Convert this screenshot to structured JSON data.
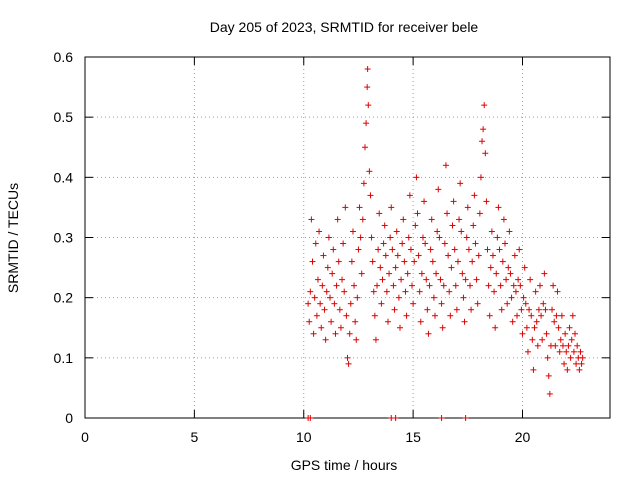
{
  "chart_data": {
    "type": "scatter",
    "title": "Day 205 of 2023, SRMTID for receiver bele",
    "xlabel": "GPS time / hours",
    "ylabel": "SRMTID / TECUs",
    "xlim": [
      0,
      24
    ],
    "ylim": [
      0,
      0.6
    ],
    "x_ticks": [
      0,
      5,
      10,
      15,
      20
    ],
    "x_tick_labels": [
      "0",
      "5",
      "10",
      "15",
      "20"
    ],
    "y_ticks": [
      0,
      0.1,
      0.2,
      0.3,
      0.4,
      0.5,
      0.6
    ],
    "y_tick_labels": [
      "0",
      "0.1",
      "0.2",
      "0.3",
      "0.4",
      "0.5",
      "0.6"
    ],
    "grid": true,
    "marker": "+",
    "series": [
      {
        "name": "SRMTID",
        "color": "#e00000",
        "points": [
          [
            10.2,
            0.19
          ],
          [
            10.25,
            0.16
          ],
          [
            10.3,
            0.21
          ],
          [
            10.35,
            0.33
          ],
          [
            10.4,
            0.26
          ],
          [
            10.45,
            0.14
          ],
          [
            10.5,
            0.2
          ],
          [
            10.55,
            0.29
          ],
          [
            10.6,
            0.17
          ],
          [
            10.65,
            0.23
          ],
          [
            10.7,
            0.31
          ],
          [
            10.75,
            0.19
          ],
          [
            10.8,
            0.15
          ],
          [
            10.85,
            0.22
          ],
          [
            10.9,
            0.27
          ],
          [
            10.95,
            0.18
          ],
          [
            11.0,
            0.13
          ],
          [
            11.05,
            0.21
          ],
          [
            11.1,
            0.25
          ],
          [
            11.15,
            0.3
          ],
          [
            11.2,
            0.2
          ],
          [
            11.25,
            0.16
          ],
          [
            11.3,
            0.24
          ],
          [
            11.35,
            0.28
          ],
          [
            11.4,
            0.19
          ],
          [
            11.45,
            0.14
          ],
          [
            11.5,
            0.22
          ],
          [
            11.55,
            0.33
          ],
          [
            11.6,
            0.26
          ],
          [
            11.65,
            0.18
          ],
          [
            11.7,
            0.15
          ],
          [
            11.75,
            0.23
          ],
          [
            11.8,
            0.29
          ],
          [
            11.85,
            0.21
          ],
          [
            11.9,
            0.35
          ],
          [
            11.95,
            0.17
          ],
          [
            12.0,
            0.1
          ],
          [
            12.05,
            0.09
          ],
          [
            12.1,
            0.14
          ],
          [
            12.15,
            0.19
          ],
          [
            12.2,
            0.26
          ],
          [
            12.25,
            0.31
          ],
          [
            12.3,
            0.22
          ],
          [
            12.35,
            0.16
          ],
          [
            12.4,
            0.13
          ],
          [
            12.45,
            0.2
          ],
          [
            12.5,
            0.28
          ],
          [
            12.55,
            0.35
          ],
          [
            12.6,
            0.3
          ],
          [
            12.65,
            0.24
          ],
          [
            12.7,
            0.33
          ],
          [
            12.75,
            0.39
          ],
          [
            12.8,
            0.45
          ],
          [
            12.85,
            0.49
          ],
          [
            12.9,
            0.55
          ],
          [
            12.92,
            0.58
          ],
          [
            12.95,
            0.52
          ],
          [
            13.0,
            0.41
          ],
          [
            13.05,
            0.37
          ],
          [
            13.1,
            0.3
          ],
          [
            13.15,
            0.26
          ],
          [
            13.2,
            0.21
          ],
          [
            13.25,
            0.17
          ],
          [
            13.3,
            0.13
          ],
          [
            13.35,
            0.22
          ],
          [
            13.4,
            0.28
          ],
          [
            13.45,
            0.34
          ],
          [
            13.5,
            0.25
          ],
          [
            13.55,
            0.19
          ],
          [
            13.6,
            0.23
          ],
          [
            13.65,
            0.29
          ],
          [
            13.7,
            0.32
          ],
          [
            13.75,
            0.27
          ],
          [
            13.8,
            0.21
          ],
          [
            13.85,
            0.16
          ],
          [
            13.9,
            0.24
          ],
          [
            13.95,
            0.3
          ],
          [
            14.0,
            0.35
          ],
          [
            14.05,
            0.28
          ],
          [
            14.1,
            0.22
          ],
          [
            14.15,
            0.18
          ],
          [
            14.2,
            0.25
          ],
          [
            14.25,
            0.31
          ],
          [
            14.3,
            0.27
          ],
          [
            14.35,
            0.2
          ],
          [
            14.4,
            0.15
          ],
          [
            14.45,
            0.23
          ],
          [
            14.5,
            0.29
          ],
          [
            14.55,
            0.33
          ],
          [
            14.6,
            0.26
          ],
          [
            14.65,
            0.21
          ],
          [
            14.7,
            0.17
          ],
          [
            14.75,
            0.24
          ],
          [
            14.8,
            0.3
          ],
          [
            14.85,
            0.37
          ],
          [
            14.9,
            0.28
          ],
          [
            14.95,
            0.22
          ],
          [
            15.0,
            0.19
          ],
          [
            15.05,
            0.26
          ],
          [
            15.1,
            0.32
          ],
          [
            15.15,
            0.4
          ],
          [
            15.2,
            0.34
          ],
          [
            15.25,
            0.27
          ],
          [
            15.3,
            0.21
          ],
          [
            15.35,
            0.16
          ],
          [
            15.4,
            0.24
          ],
          [
            15.45,
            0.3
          ],
          [
            15.5,
            0.36
          ],
          [
            15.55,
            0.29
          ],
          [
            15.6,
            0.23
          ],
          [
            15.65,
            0.18
          ],
          [
            15.7,
            0.14
          ],
          [
            15.75,
            0.22
          ],
          [
            15.8,
            0.28
          ],
          [
            15.85,
            0.33
          ],
          [
            15.9,
            0.26
          ],
          [
            15.95,
            0.2
          ],
          [
            16.0,
            0.17
          ],
          [
            16.05,
            0.24
          ],
          [
            16.1,
            0.31
          ],
          [
            16.15,
            0.38
          ],
          [
            16.2,
            0.3
          ],
          [
            16.25,
            0.23
          ],
          [
            16.3,
            0.19
          ],
          [
            16.35,
            0.15
          ],
          [
            16.4,
            0.22
          ],
          [
            16.45,
            0.29
          ],
          [
            16.5,
            0.42
          ],
          [
            16.55,
            0.34
          ],
          [
            16.6,
            0.27
          ],
          [
            16.65,
            0.21
          ],
          [
            16.7,
            0.17
          ],
          [
            16.75,
            0.25
          ],
          [
            16.8,
            0.32
          ],
          [
            16.85,
            0.36
          ],
          [
            16.9,
            0.28
          ],
          [
            16.95,
            0.22
          ],
          [
            17.0,
            0.18
          ],
          [
            17.05,
            0.26
          ],
          [
            17.1,
            0.33
          ],
          [
            17.15,
            0.39
          ],
          [
            17.2,
            0.31
          ],
          [
            17.25,
            0.24
          ],
          [
            17.3,
            0.2
          ],
          [
            17.35,
            0.16
          ],
          [
            17.4,
            0.23
          ],
          [
            17.45,
            0.3
          ],
          [
            17.5,
            0.35
          ],
          [
            17.55,
            0.28
          ],
          [
            17.6,
            0.22
          ],
          [
            17.65,
            0.18
          ],
          [
            17.7,
            0.26
          ],
          [
            17.75,
            0.32
          ],
          [
            17.8,
            0.37
          ],
          [
            17.85,
            0.29
          ],
          [
            17.9,
            0.23
          ],
          [
            17.95,
            0.19
          ],
          [
            18.0,
            0.27
          ],
          [
            18.05,
            0.34
          ],
          [
            18.1,
            0.4
          ],
          [
            18.15,
            0.46
          ],
          [
            18.2,
            0.48
          ],
          [
            18.25,
            0.52
          ],
          [
            18.3,
            0.44
          ],
          [
            18.35,
            0.36
          ],
          [
            18.4,
            0.28
          ],
          [
            18.45,
            0.22
          ],
          [
            18.5,
            0.17
          ],
          [
            18.55,
            0.25
          ],
          [
            18.6,
            0.31
          ],
          [
            18.65,
            0.27
          ],
          [
            18.7,
            0.21
          ],
          [
            18.75,
            0.15
          ],
          [
            18.8,
            0.24
          ],
          [
            18.85,
            0.3
          ],
          [
            18.9,
            0.35
          ],
          [
            18.95,
            0.28
          ],
          [
            19.0,
            0.22
          ],
          [
            19.05,
            0.18
          ],
          [
            19.1,
            0.26
          ],
          [
            19.15,
            0.33
          ],
          [
            19.2,
            0.29
          ],
          [
            19.25,
            0.23
          ],
          [
            19.3,
            0.19
          ],
          [
            19.35,
            0.25
          ],
          [
            19.4,
            0.31
          ],
          [
            19.45,
            0.24
          ],
          [
            19.5,
            0.2
          ],
          [
            19.55,
            0.16
          ],
          [
            19.6,
            0.22
          ],
          [
            19.65,
            0.27
          ],
          [
            19.7,
            0.21
          ],
          [
            19.75,
            0.17
          ],
          [
            19.8,
            0.23
          ],
          [
            19.85,
            0.28
          ],
          [
            19.9,
            0.22
          ],
          [
            19.95,
            0.18
          ],
          [
            20.0,
            0.14
          ],
          [
            20.05,
            0.2
          ],
          [
            20.1,
            0.25
          ],
          [
            20.15,
            0.19
          ],
          [
            20.2,
            0.15
          ],
          [
            20.25,
            0.11
          ],
          [
            20.3,
            0.18
          ],
          [
            20.35,
            0.23
          ],
          [
            20.4,
            0.17
          ],
          [
            20.45,
            0.13
          ],
          [
            20.5,
            0.08
          ],
          [
            20.55,
            0.15
          ],
          [
            20.6,
            0.21
          ],
          [
            20.65,
            0.16
          ],
          [
            20.7,
            0.12
          ],
          [
            20.75,
            0.18
          ],
          [
            20.8,
            0.22
          ],
          [
            20.85,
            0.17
          ],
          [
            20.9,
            0.13
          ],
          [
            20.95,
            0.19
          ],
          [
            21.0,
            0.24
          ],
          [
            21.05,
            0.18
          ],
          [
            21.1,
            0.14
          ],
          [
            21.15,
            0.1
          ],
          [
            21.2,
            0.07
          ],
          [
            21.25,
            0.04
          ],
          [
            21.3,
            0.12
          ],
          [
            21.35,
            0.18
          ],
          [
            21.4,
            0.22
          ],
          [
            21.45,
            0.16
          ],
          [
            21.5,
            0.12
          ],
          [
            21.55,
            0.17
          ],
          [
            21.6,
            0.21
          ],
          [
            21.65,
            0.15
          ],
          [
            21.7,
            0.11
          ],
          [
            21.75,
            0.13
          ],
          [
            21.8,
            0.17
          ],
          [
            21.85,
            0.12
          ],
          [
            21.9,
            0.09
          ],
          [
            21.95,
            0.14
          ],
          [
            22.0,
            0.11
          ],
          [
            22.05,
            0.08
          ],
          [
            22.1,
            0.12
          ],
          [
            22.15,
            0.15
          ],
          [
            22.2,
            0.1
          ],
          [
            22.25,
            0.13
          ],
          [
            22.3,
            0.17
          ],
          [
            22.35,
            0.11
          ],
          [
            22.4,
            0.14
          ],
          [
            22.45,
            0.09
          ],
          [
            22.5,
            0.12
          ],
          [
            22.55,
            0.1
          ],
          [
            22.6,
            0.08
          ],
          [
            22.65,
            0.11
          ],
          [
            22.7,
            0.09
          ],
          [
            22.75,
            0.1
          ]
        ],
        "zero_points": [
          [
            10.2,
            0
          ],
          [
            10.3,
            0
          ],
          [
            14.0,
            0
          ],
          [
            14.2,
            0
          ],
          [
            16.3,
            0
          ],
          [
            17.4,
            0
          ]
        ]
      }
    ]
  }
}
